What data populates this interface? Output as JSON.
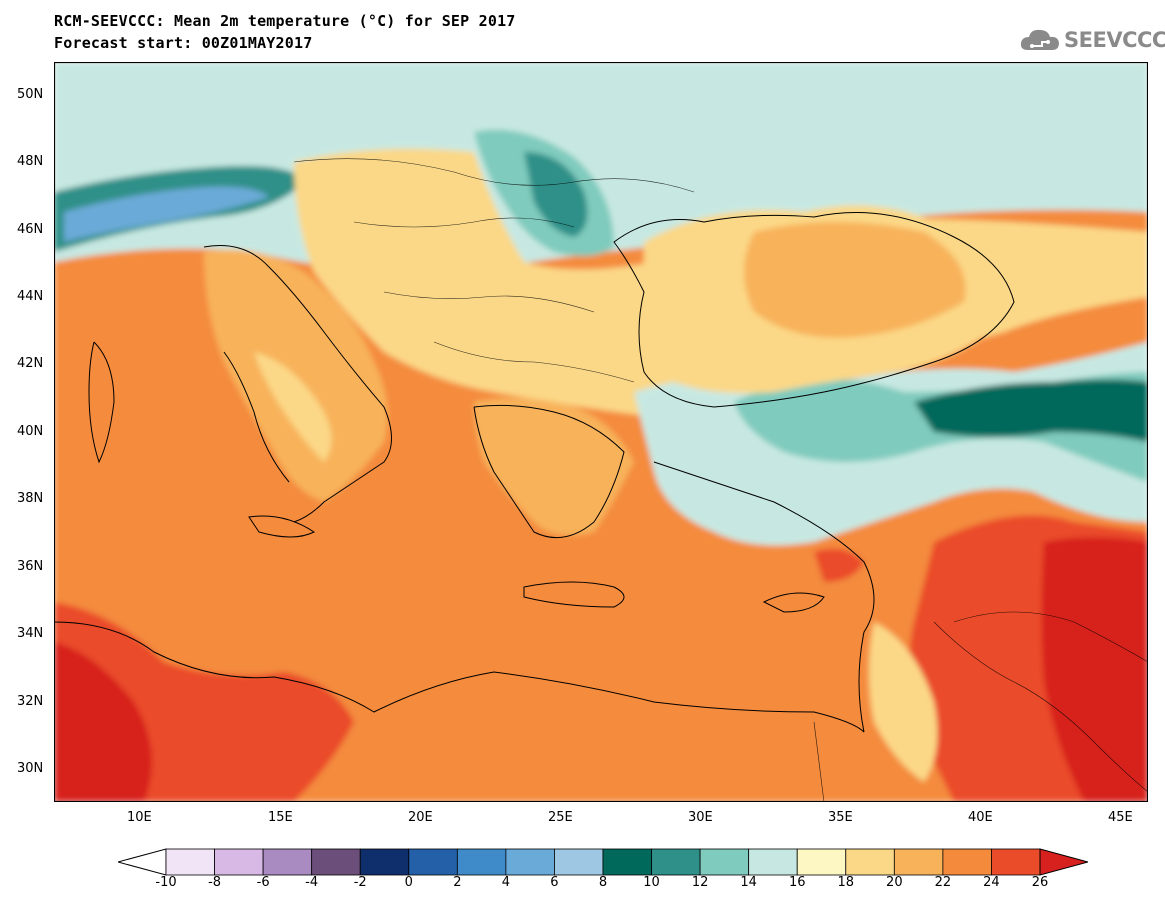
{
  "header": {
    "title_line1": "RCM-SEEVCCC: Mean 2m temperature (°C) for SEP 2017",
    "title_line2": "Forecast start: 00Z01MAY2017"
  },
  "logo": {
    "text": "SEEVCCC",
    "icon": "cloud-icon",
    "color": "#8a8a8a"
  },
  "map": {
    "lon_ticks": [
      "10E",
      "15E",
      "20E",
      "25E",
      "30E",
      "35E",
      "40E",
      "45E"
    ],
    "lat_ticks": [
      "50N",
      "48N",
      "46N",
      "44N",
      "42N",
      "40N",
      "38N",
      "36N",
      "34N",
      "32N",
      "30N"
    ],
    "lon_range": [
      7,
      46
    ],
    "lat_range": [
      29,
      51
    ]
  },
  "colorbar": {
    "labels": [
      "-10",
      "-8",
      "-6",
      "-4",
      "-2",
      "0",
      "2",
      "4",
      "6",
      "8",
      "10",
      "12",
      "14",
      "16",
      "18",
      "20",
      "22",
      "24",
      "26"
    ],
    "colors": [
      "#f2e4f7",
      "#d8b9e5",
      "#a98bc2",
      "#6c4e7a",
      "#0e2f6b",
      "#2460a8",
      "#3f8bc9",
      "#6aaad8",
      "#9ec7e3",
      "#00695c",
      "#2e9088",
      "#7fcbbd",
      "#c7e8e2",
      "#fdf7c4",
      "#fbd887",
      "#f8b25a",
      "#f48b3c",
      "#ea4c2a",
      "#d7211f"
    ],
    "under_color": "#ffffff",
    "over_color": "#d7211f"
  }
}
